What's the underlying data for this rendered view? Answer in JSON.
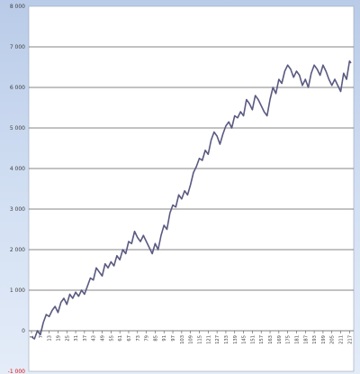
{
  "chart_data": {
    "type": "line",
    "title": "",
    "xlabel": "",
    "ylabel": "",
    "ylim": [
      -1000,
      8000
    ],
    "xlim": [
      1,
      218
    ],
    "grid": true,
    "legend": "none",
    "line_color": "#5a5a82",
    "y_ticks": [
      "8 000",
      "7 000",
      "6 000",
      "5 000",
      "4 000",
      "3 000",
      "2 000",
      "1 000",
      "0",
      "-1 000"
    ],
    "y_tick_values": [
      8000,
      7000,
      6000,
      5000,
      4000,
      3000,
      2000,
      1000,
      0,
      -1000
    ],
    "x_tick_values": [
      1,
      7,
      13,
      19,
      25,
      31,
      37,
      43,
      49,
      55,
      61,
      67,
      73,
      79,
      85,
      91,
      97,
      103,
      109,
      115,
      121,
      127,
      133,
      139,
      145,
      151,
      157,
      163,
      169,
      175,
      181,
      187,
      193,
      199,
      205,
      211,
      217
    ],
    "series": [
      {
        "values": [
          [
            1,
            -150
          ],
          [
            3,
            -200
          ],
          [
            5,
            0
          ],
          [
            7,
            -100
          ],
          [
            9,
            200
          ],
          [
            11,
            400
          ],
          [
            13,
            350
          ],
          [
            15,
            500
          ],
          [
            17,
            600
          ],
          [
            19,
            450
          ],
          [
            21,
            700
          ],
          [
            23,
            800
          ],
          [
            25,
            650
          ],
          [
            27,
            900
          ],
          [
            29,
            800
          ],
          [
            31,
            950
          ],
          [
            33,
            850
          ],
          [
            35,
            1000
          ],
          [
            37,
            900
          ],
          [
            39,
            1100
          ],
          [
            41,
            1300
          ],
          [
            43,
            1250
          ],
          [
            45,
            1550
          ],
          [
            47,
            1450
          ],
          [
            49,
            1350
          ],
          [
            51,
            1650
          ],
          [
            53,
            1550
          ],
          [
            55,
            1700
          ],
          [
            57,
            1600
          ],
          [
            59,
            1850
          ],
          [
            61,
            1750
          ],
          [
            63,
            2000
          ],
          [
            65,
            1900
          ],
          [
            67,
            2200
          ],
          [
            69,
            2150
          ],
          [
            71,
            2450
          ],
          [
            73,
            2300
          ],
          [
            75,
            2200
          ],
          [
            77,
            2350
          ],
          [
            79,
            2200
          ],
          [
            81,
            2050
          ],
          [
            83,
            1900
          ],
          [
            85,
            2150
          ],
          [
            87,
            2000
          ],
          [
            89,
            2350
          ],
          [
            91,
            2600
          ],
          [
            93,
            2500
          ],
          [
            95,
            2900
          ],
          [
            97,
            3100
          ],
          [
            99,
            3050
          ],
          [
            101,
            3350
          ],
          [
            103,
            3250
          ],
          [
            105,
            3450
          ],
          [
            107,
            3350
          ],
          [
            109,
            3600
          ],
          [
            111,
            3900
          ],
          [
            113,
            4050
          ],
          [
            115,
            4250
          ],
          [
            117,
            4200
          ],
          [
            119,
            4450
          ],
          [
            121,
            4350
          ],
          [
            123,
            4700
          ],
          [
            125,
            4900
          ],
          [
            127,
            4800
          ],
          [
            129,
            4600
          ],
          [
            131,
            4850
          ],
          [
            133,
            5050
          ],
          [
            135,
            5150
          ],
          [
            137,
            5000
          ],
          [
            139,
            5300
          ],
          [
            141,
            5250
          ],
          [
            143,
            5400
          ],
          [
            145,
            5300
          ],
          [
            147,
            5700
          ],
          [
            149,
            5600
          ],
          [
            151,
            5450
          ],
          [
            153,
            5800
          ],
          [
            155,
            5700
          ],
          [
            157,
            5550
          ],
          [
            159,
            5400
          ],
          [
            161,
            5300
          ],
          [
            163,
            5700
          ],
          [
            165,
            6000
          ],
          [
            167,
            5850
          ],
          [
            169,
            6200
          ],
          [
            171,
            6100
          ],
          [
            173,
            6400
          ],
          [
            175,
            6550
          ],
          [
            177,
            6450
          ],
          [
            179,
            6250
          ],
          [
            181,
            6400
          ],
          [
            183,
            6300
          ],
          [
            185,
            6050
          ],
          [
            187,
            6200
          ],
          [
            189,
            6000
          ],
          [
            191,
            6350
          ],
          [
            193,
            6550
          ],
          [
            195,
            6450
          ],
          [
            197,
            6300
          ],
          [
            199,
            6550
          ],
          [
            201,
            6400
          ],
          [
            203,
            6200
          ],
          [
            205,
            6050
          ],
          [
            207,
            6200
          ],
          [
            209,
            6050
          ],
          [
            211,
            5900
          ],
          [
            213,
            6350
          ],
          [
            215,
            6200
          ],
          [
            217,
            6650
          ],
          [
            218,
            6600
          ]
        ]
      }
    ]
  }
}
